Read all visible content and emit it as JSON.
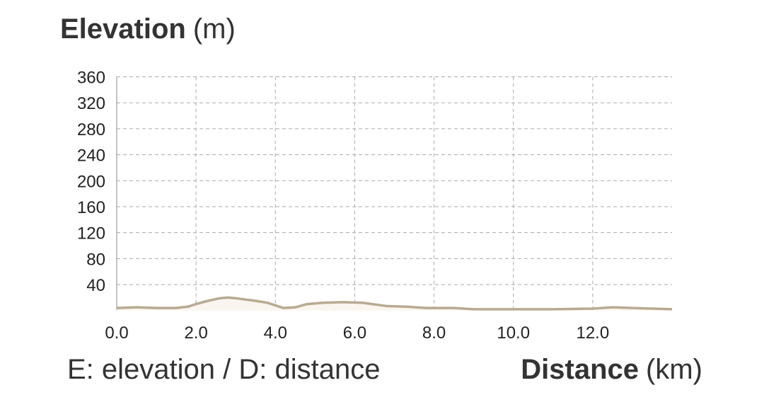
{
  "chart_data": {
    "type": "area",
    "y_label": {
      "main": "Elevation",
      "unit": "(m)"
    },
    "x_label": {
      "main": "Distance",
      "unit": "(km)"
    },
    "note": "E: elevation / D: distance",
    "x": [
      0,
      0.5,
      1.0,
      1.5,
      1.8,
      2.0,
      2.3,
      2.6,
      2.8,
      3.0,
      3.5,
      3.8,
      4.0,
      4.2,
      4.5,
      4.8,
      5.2,
      5.7,
      6.2,
      6.8,
      7.3,
      7.8,
      8.5,
      9.0,
      10.0,
      11.0,
      12.0,
      12.5,
      13.0,
      13.5,
      14.0
    ],
    "values": [
      4,
      5,
      4,
      4,
      6,
      10,
      15,
      19,
      20,
      19,
      15,
      12,
      8,
      4,
      5,
      10,
      12,
      13,
      12,
      7,
      6,
      4,
      4,
      2,
      2,
      2,
      3,
      5,
      4,
      3,
      2
    ],
    "color": "#b8aa92",
    "fill": "#faf5ee",
    "xlim": [
      0,
      14
    ],
    "ylim": [
      0,
      360
    ],
    "xticks": [
      {
        "value": 0,
        "label": "0.0"
      },
      {
        "value": 2,
        "label": "2.0"
      },
      {
        "value": 4,
        "label": "4.0"
      },
      {
        "value": 6,
        "label": "6.0"
      },
      {
        "value": 8,
        "label": "8.0"
      },
      {
        "value": 10,
        "label": "10.0"
      },
      {
        "value": 12,
        "label": "12.0"
      }
    ],
    "yticks": [
      40,
      80,
      120,
      160,
      200,
      240,
      280,
      320,
      360
    ],
    "grid": true
  }
}
